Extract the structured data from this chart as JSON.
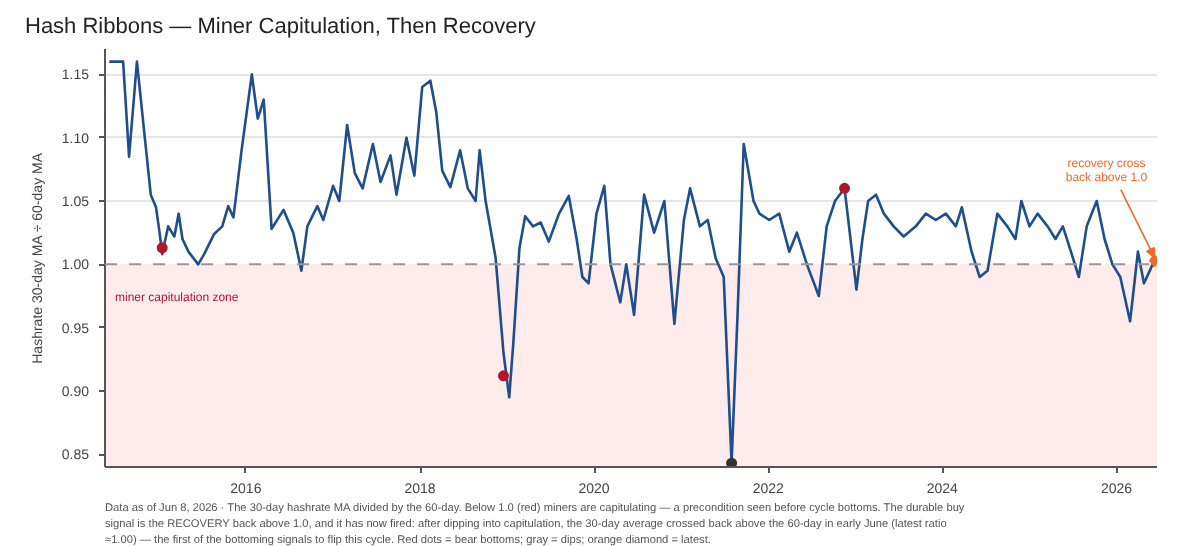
{
  "chart_data": {
    "type": "line",
    "title": "Hash Ribbons — Miner Capitulation, Then Recovery",
    "ylabel": "Hashrate 30-day MA ÷ 60-day MA",
    "xlim": [
      "2014-05-20",
      "2026-06-20"
    ],
    "xticks": [
      {
        "value": "2016-01-01",
        "label": "2016"
      },
      {
        "value": "2018-01-01",
        "label": "2018"
      },
      {
        "value": "2020-01-01",
        "label": "2020"
      },
      {
        "value": "2022-01-01",
        "label": "2022"
      },
      {
        "value": "2024-01-01",
        "label": "2024"
      },
      {
        "value": "2026-01-01",
        "label": "2026"
      }
    ],
    "ylim": [
      0.84,
      1.17
    ],
    "yticks": [
      0.85,
      {
        "value": 0.9,
        "label": "0.90"
      },
      0.95,
      {
        "value": 1.0,
        "label": "1.00"
      },
      1.05,
      {
        "value": 1.1,
        "label": "1.10"
      },
      1.15
    ],
    "grid": "y",
    "line_style": "solid",
    "series": [
      {
        "color": "#1f4e8c",
        "x": [
          "2014-06-07",
          "2014-08-04",
          "2014-08-29",
          "2014-10-01",
          "2014-11-03",
          "2014-11-28",
          "2014-12-20",
          "2015-01-04",
          "2015-01-15",
          "2015-02-09",
          "2015-03-07",
          "2015-03-25",
          "2015-04-10",
          "2015-05-05",
          "2015-06-15",
          "2015-07-10",
          "2015-08-21",
          "2015-09-24",
          "2015-10-19",
          "2015-11-10",
          "2015-12-14",
          "2016-01-26",
          "2016-02-20",
          "2016-03-16",
          "2016-04-18",
          "2016-06-07",
          "2016-07-18",
          "2016-08-21",
          "2016-09-15",
          "2016-10-27",
          "2016-11-21",
          "2017-01-01",
          "2017-01-27",
          "2017-03-01",
          "2017-04-02",
          "2017-05-05",
          "2017-06-17",
          "2017-07-19",
          "2017-08-30",
          "2017-09-24",
          "2017-11-05",
          "2017-12-08",
          "2018-01-10",
          "2018-02-13",
          "2018-03-10",
          "2018-04-04",
          "2018-05-08",
          "2018-06-18",
          "2018-07-20",
          "2018-08-22",
          "2018-09-08",
          "2018-10-03",
          "2018-11-14",
          "2018-12-17",
          "2019-01-10",
          "2019-01-28",
          "2019-02-22",
          "2019-03-18",
          "2019-04-20",
          "2019-05-22",
          "2019-06-25",
          "2019-08-07",
          "2019-09-17",
          "2019-10-20",
          "2019-11-13",
          "2019-12-09",
          "2020-01-11",
          "2020-02-13",
          "2020-03-10",
          "2020-04-20",
          "2020-05-15",
          "2020-06-17",
          "2020-07-29",
          "2020-09-09",
          "2020-10-22",
          "2020-12-03",
          "2021-01-12",
          "2021-02-07",
          "2021-03-20",
          "2021-04-22",
          "2021-05-25",
          "2021-06-28",
          "2021-07-31",
          "2021-08-25",
          "2021-09-20",
          "2021-10-31",
          "2021-11-25",
          "2022-01-05",
          "2022-02-16",
          "2022-03-30",
          "2022-05-01",
          "2022-06-12",
          "2022-08-01",
          "2022-09-03",
          "2022-10-08",
          "2022-11-17",
          "2022-12-12",
          "2023-01-06",
          "2023-01-31",
          "2023-02-24",
          "2023-03-29",
          "2023-05-01",
          "2023-06-11",
          "2023-07-23",
          "2023-09-12",
          "2023-10-24",
          "2023-12-05",
          "2024-01-16",
          "2024-02-27",
          "2024-03-23",
          "2024-05-03",
          "2024-06-06",
          "2024-07-09",
          "2024-08-19",
          "2024-09-30",
          "2024-11-03",
          "2024-11-28",
          "2025-01-01",
          "2025-02-04",
          "2025-03-18",
          "2025-04-20",
          "2025-05-21",
          "2025-06-24",
          "2025-07-27",
          "2025-08-29",
          "2025-10-10",
          "2025-11-12",
          "2025-12-15",
          "2026-01-17",
          "2026-02-27",
          "2026-04-01",
          "2026-04-26",
          "2026-05-21",
          "2026-06-08"
        ],
        "values": [
          1.16,
          1.16,
          1.085,
          1.16,
          1.1,
          1.055,
          1.045,
          1.025,
          1.008,
          1.03,
          1.022,
          1.04,
          1.02,
          1.01,
          1.0,
          1.008,
          1.024,
          1.03,
          1.046,
          1.037,
          1.09,
          1.15,
          1.115,
          1.13,
          1.028,
          1.043,
          1.025,
          0.995,
          1.03,
          1.046,
          1.035,
          1.062,
          1.05,
          1.11,
          1.072,
          1.06,
          1.095,
          1.065,
          1.086,
          1.055,
          1.1,
          1.07,
          1.14,
          1.145,
          1.12,
          1.074,
          1.061,
          1.09,
          1.06,
          1.05,
          1.09,
          1.05,
          1.005,
          0.93,
          0.895,
          0.94,
          1.013,
          1.038,
          1.03,
          1.033,
          1.018,
          1.04,
          1.054,
          1.02,
          0.99,
          0.985,
          1.04,
          1.062,
          1.0,
          0.97,
          1.0,
          0.96,
          1.055,
          1.025,
          1.05,
          0.953,
          1.035,
          1.06,
          1.03,
          1.035,
          1.005,
          0.99,
          0.843,
          0.96,
          1.095,
          1.05,
          1.04,
          1.035,
          1.04,
          1.01,
          1.025,
          1.0,
          0.975,
          1.03,
          1.05,
          1.06,
          1.02,
          0.98,
          1.02,
          1.05,
          1.055,
          1.04,
          1.03,
          1.022,
          1.03,
          1.04,
          1.035,
          1.04,
          1.03,
          1.045,
          1.01,
          0.99,
          0.995,
          1.04,
          1.03,
          1.02,
          1.05,
          1.03,
          1.04,
          1.03,
          1.02,
          1.03,
          1.01,
          0.99,
          1.03,
          1.05,
          1.02,
          1.0,
          0.99,
          0.955,
          1.01,
          0.985,
          0.995,
          1.003
        ]
      },
      {
        "type": "scatter",
        "marker": "circle",
        "color": "#b2182b",
        "x": [
          "2015-01-15",
          "2018-12-17",
          "2022-11-17"
        ],
        "values": [
          1.013,
          0.912,
          1.06
        ]
      },
      {
        "type": "scatter",
        "marker": "circle",
        "color": "#333333",
        "x": [
          "2021-07-31"
        ],
        "values": [
          0.843
        ]
      },
      {
        "type": "scatter",
        "marker": "diamond",
        "color": "#f26b21",
        "x": [
          "2026-06-08"
        ],
        "values": [
          1.003
        ]
      }
    ],
    "bands": [
      {
        "axis": "y",
        "from": 0.84,
        "to": 1.0,
        "label": "miner capitulation zone",
        "color": "#fdeceb"
      }
    ],
    "ref_lines": [
      {
        "axis": "y",
        "value": 1.0,
        "color": "#999999",
        "line_style": "dashed"
      }
    ],
    "annotations": [
      {
        "text": "recovery cross back above 1.0",
        "x": "2026-06-08",
        "y": 1.003
      },
      "Data as of Jun 8, 2026 · The 30-day hashrate MA divided by the 60-day. Below 1.0 (red) miners are capitulating — a precondition seen before cycle bottoms. The durable buy signal is the RECOVERY back above 1.0, and it has now fired: after dipping into capitulation, the 30-day average crossed back above the 60-day in early June (latest ratio ≈1.00) — the first of the bottoming signals to flip this cycle. Red dots = bear bottoms; gray = dips; orange diamond = latest."
    ]
  }
}
